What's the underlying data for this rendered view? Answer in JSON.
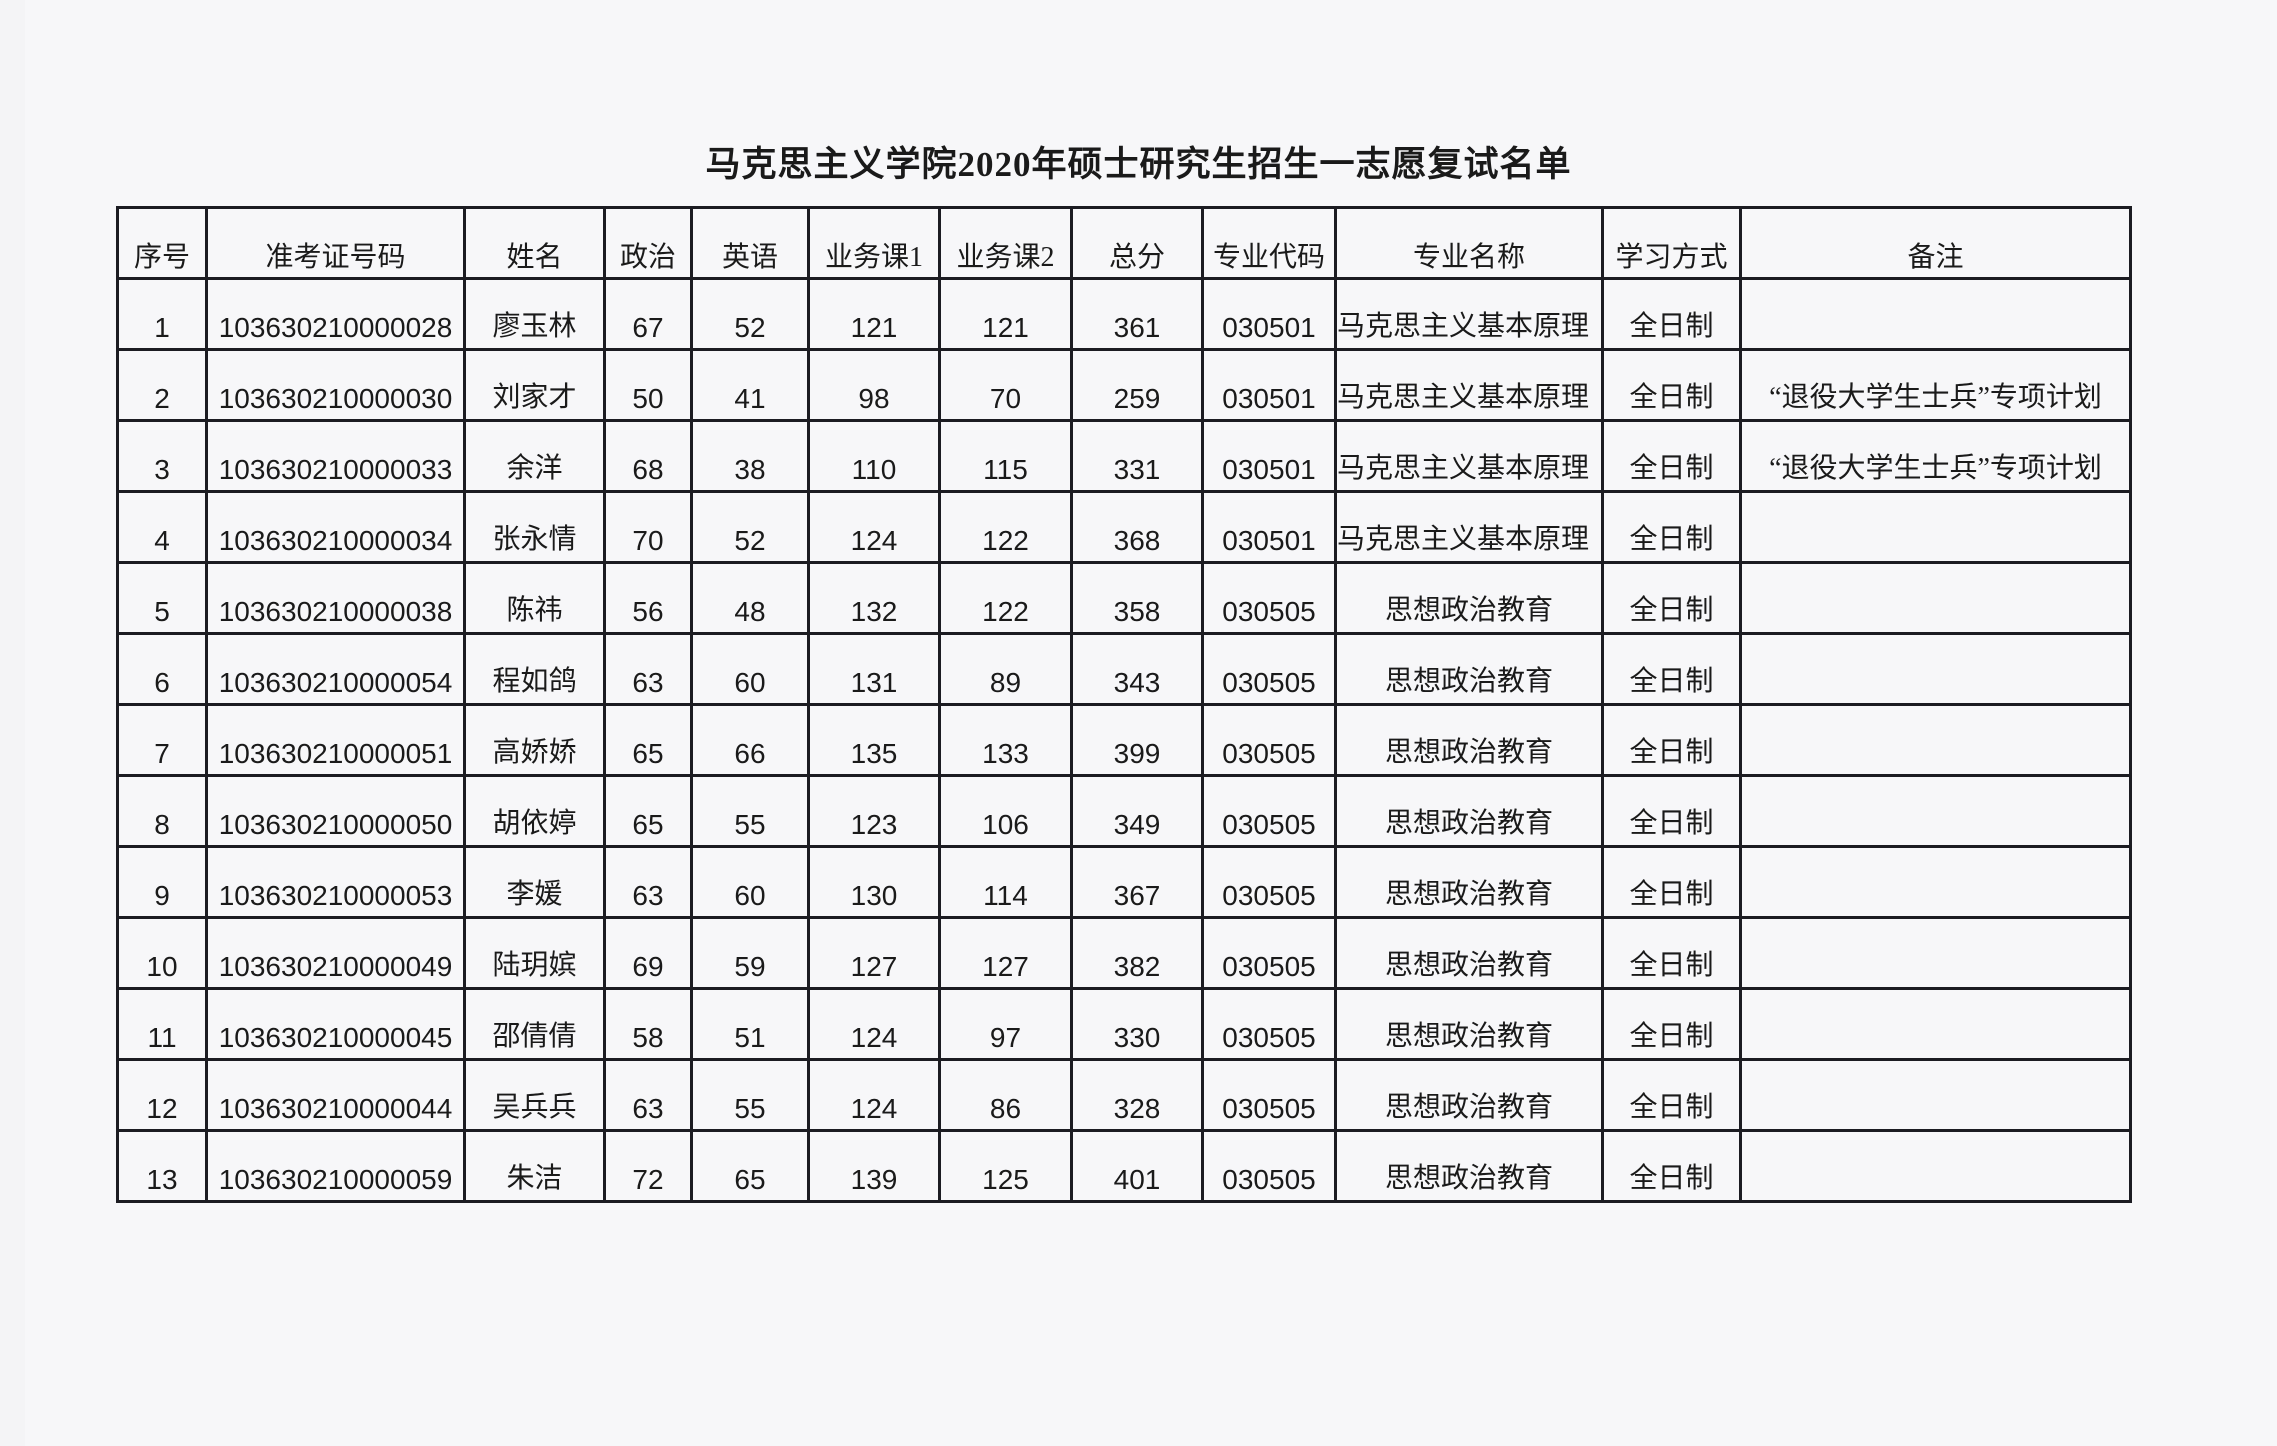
{
  "title": "马克思主义学院2020年硕士研究生招生一志愿复试名单",
  "columns": [
    "序号",
    "准考证号码",
    "姓名",
    "政治",
    "英语",
    "业务课1",
    "业务课2",
    "总分",
    "专业代码",
    "专业名称",
    "学习方式",
    "备注"
  ],
  "rows": [
    {
      "no": "1",
      "exam_id": "103630210000028",
      "name": "廖玉林",
      "politics": "67",
      "english": "52",
      "course1": "121",
      "course2": "121",
      "total": "361",
      "major_code": "030501",
      "major_name": "马克思主义基本原理",
      "mode": "全日制",
      "note": ""
    },
    {
      "no": "2",
      "exam_id": "103630210000030",
      "name": "刘家才",
      "politics": "50",
      "english": "41",
      "course1": "98",
      "course2": "70",
      "total": "259",
      "major_code": "030501",
      "major_name": "马克思主义基本原理",
      "mode": "全日制",
      "note": "“退役大学生士兵”专项计划"
    },
    {
      "no": "3",
      "exam_id": "103630210000033",
      "name": "余洋",
      "politics": "68",
      "english": "38",
      "course1": "110",
      "course2": "115",
      "total": "331",
      "major_code": "030501",
      "major_name": "马克思主义基本原理",
      "mode": "全日制",
      "note": "“退役大学生士兵”专项计划"
    },
    {
      "no": "4",
      "exam_id": "103630210000034",
      "name": "张永情",
      "politics": "70",
      "english": "52",
      "course1": "124",
      "course2": "122",
      "total": "368",
      "major_code": "030501",
      "major_name": "马克思主义基本原理",
      "mode": "全日制",
      "note": ""
    },
    {
      "no": "5",
      "exam_id": "103630210000038",
      "name": "陈祎",
      "politics": "56",
      "english": "48",
      "course1": "132",
      "course2": "122",
      "total": "358",
      "major_code": "030505",
      "major_name": "思想政治教育",
      "mode": "全日制",
      "note": ""
    },
    {
      "no": "6",
      "exam_id": "103630210000054",
      "name": "程如鸽",
      "politics": "63",
      "english": "60",
      "course1": "131",
      "course2": "89",
      "total": "343",
      "major_code": "030505",
      "major_name": "思想政治教育",
      "mode": "全日制",
      "note": ""
    },
    {
      "no": "7",
      "exam_id": "103630210000051",
      "name": "高娇娇",
      "politics": "65",
      "english": "66",
      "course1": "135",
      "course2": "133",
      "total": "399",
      "major_code": "030505",
      "major_name": "思想政治教育",
      "mode": "全日制",
      "note": ""
    },
    {
      "no": "8",
      "exam_id": "103630210000050",
      "name": "胡依婷",
      "politics": "65",
      "english": "55",
      "course1": "123",
      "course2": "106",
      "total": "349",
      "major_code": "030505",
      "major_name": "思想政治教育",
      "mode": "全日制",
      "note": ""
    },
    {
      "no": "9",
      "exam_id": "103630210000053",
      "name": "李媛",
      "politics": "63",
      "english": "60",
      "course1": "130",
      "course2": "114",
      "total": "367",
      "major_code": "030505",
      "major_name": "思想政治教育",
      "mode": "全日制",
      "note": ""
    },
    {
      "no": "10",
      "exam_id": "103630210000049",
      "name": "陆玥嫔",
      "politics": "69",
      "english": "59",
      "course1": "127",
      "course2": "127",
      "total": "382",
      "major_code": "030505",
      "major_name": "思想政治教育",
      "mode": "全日制",
      "note": ""
    },
    {
      "no": "11",
      "exam_id": "103630210000045",
      "name": "邵倩倩",
      "politics": "58",
      "english": "51",
      "course1": "124",
      "course2": "97",
      "total": "330",
      "major_code": "030505",
      "major_name": "思想政治教育",
      "mode": "全日制",
      "note": ""
    },
    {
      "no": "12",
      "exam_id": "103630210000044",
      "name": "吴兵兵",
      "politics": "63",
      "english": "55",
      "course1": "124",
      "course2": "86",
      "total": "328",
      "major_code": "030505",
      "major_name": "思想政治教育",
      "mode": "全日制",
      "note": ""
    },
    {
      "no": "13",
      "exam_id": "103630210000059",
      "name": "朱洁",
      "politics": "72",
      "english": "65",
      "course1": "139",
      "course2": "125",
      "total": "401",
      "major_code": "030505",
      "major_name": "思想政治教育",
      "mode": "全日制",
      "note": ""
    }
  ]
}
